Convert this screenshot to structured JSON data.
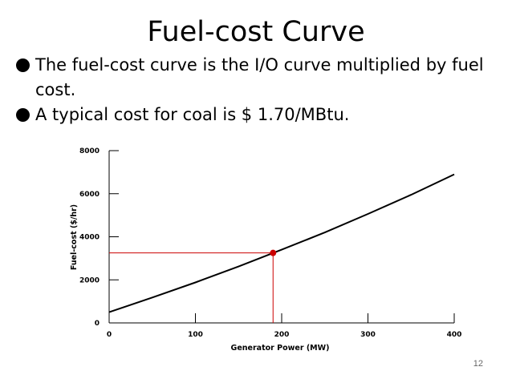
{
  "slide": {
    "title": "Fuel-cost Curve",
    "bullets": [
      "The fuel-cost curve is the I/O curve multiplied by fuel cost.",
      "A typical cost for coal is $ 1.70/MBtu."
    ],
    "slide_number": "12"
  },
  "chart_data": {
    "type": "line",
    "xlabel": "Generator Power (MW)",
    "ylabel": "Fuel-cost ($/hr)",
    "xlim": [
      0,
      400
    ],
    "ylim": [
      0,
      8000
    ],
    "xticks": [
      0,
      100,
      200,
      300,
      400
    ],
    "yticks": [
      0,
      2000,
      4000,
      6000,
      8000
    ],
    "grid": false,
    "series": [
      {
        "x": [
          0,
          50,
          100,
          150,
          200,
          250,
          300,
          350,
          400
        ],
        "y": [
          500,
          1180,
          1880,
          2620,
          3400,
          4200,
          5060,
          5950,
          6900
        ],
        "color": "#000000"
      }
    ],
    "highlight_point": {
      "x": 190,
      "y": 3250,
      "color": "#cc0000"
    }
  }
}
